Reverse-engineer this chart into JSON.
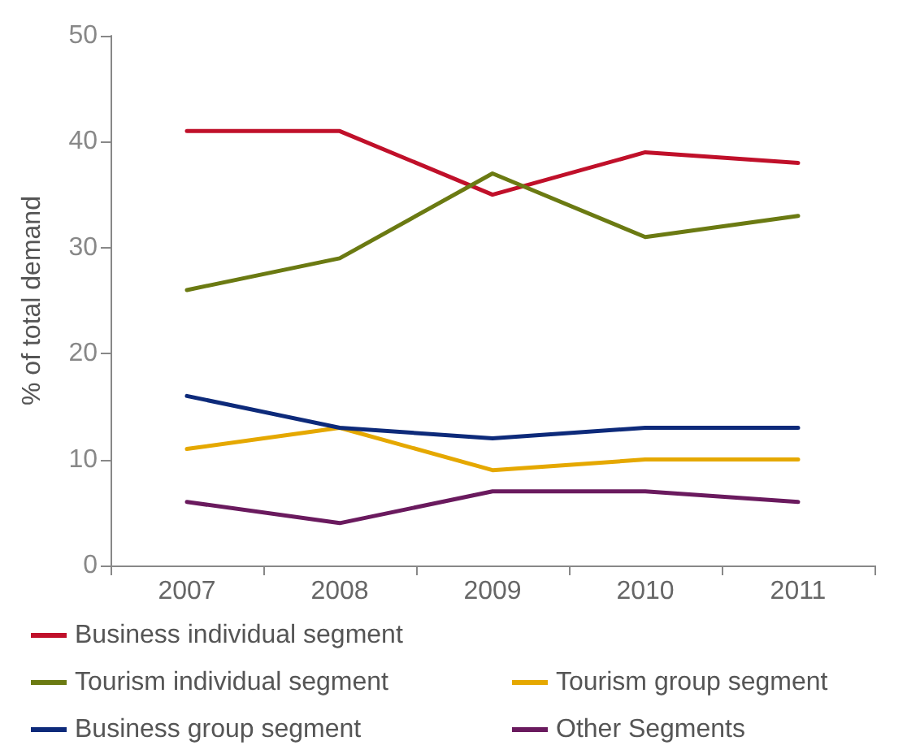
{
  "chart_data": {
    "type": "line",
    "ylabel": "% of total demand",
    "categories": [
      "2007",
      "2008",
      "2009",
      "2010",
      "2011"
    ],
    "series": [
      {
        "name": "Business individual segment",
        "color": "#c0102a",
        "values": [
          41,
          41,
          35,
          39,
          38
        ]
      },
      {
        "name": "Tourism group segment",
        "color": "#e5a800",
        "values": [
          11,
          13,
          9,
          10,
          10
        ]
      },
      {
        "name": "Tourism individual segment",
        "color": "#6b7a12",
        "values": [
          26,
          29,
          37,
          31,
          33
        ]
      },
      {
        "name": "Other Segments",
        "color": "#6a1a5e",
        "values": [
          6,
          4,
          7,
          7,
          6
        ]
      },
      {
        "name": "Business group segment",
        "color": "#0d2a7a",
        "values": [
          16,
          13,
          12,
          13,
          13
        ]
      }
    ],
    "ylim": [
      0,
      50
    ],
    "yticks": [
      0,
      10,
      20,
      30,
      40,
      50
    ],
    "grid": false,
    "legend": "bottom",
    "marker": "none",
    "line_style": "solid"
  }
}
